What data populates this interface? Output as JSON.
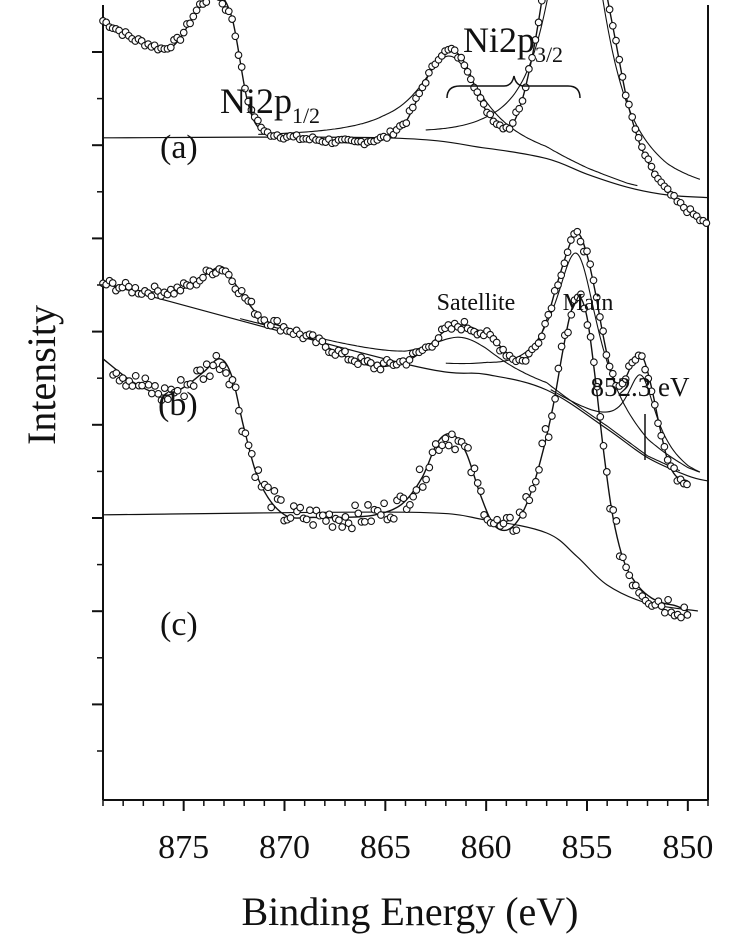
{
  "chart_data": {
    "type": "line",
    "xlabel": "Binding Energy (eV)",
    "ylabel": "Intensity",
    "x_reversed": true,
    "xlim": [
      879,
      849
    ],
    "x_ticks": [
      875,
      870,
      865,
      860,
      855,
      850
    ],
    "x_tick_labels": [
      "875",
      "870",
      "865",
      "860",
      "855",
      "850"
    ],
    "y_ticklabels_shown": false,
    "grid": false,
    "legend": "none",
    "peak_labels": {
      "ni2p12": {
        "base": "Ni2p",
        "sub": "1/2",
        "x": 873.3
      },
      "ni2p32": {
        "base": "Ni2p",
        "sub": "3/2",
        "x": 859.0
      }
    },
    "annotations": {
      "satellite": "Satellite",
      "main": "Main",
      "shoulder": "852.3 eV"
    },
    "series": [
      {
        "name": "(a)",
        "offset": 2.05,
        "markers": "open-circle",
        "data_x": [
          879,
          877.5,
          876,
          875.2,
          874.2,
          873.4,
          872.6,
          871.8,
          871,
          869.5,
          868,
          866.5,
          865,
          864,
          863,
          862.3,
          861.7,
          861,
          860.2,
          859.4,
          858.8,
          858.2,
          857.6,
          857,
          856.4,
          855.8,
          855.4,
          855,
          854.6,
          854.2,
          853.6,
          853,
          852.4,
          851.8,
          851.2,
          850.5,
          849.8,
          849
        ],
        "data_y": [
          0.87,
          0.8,
          0.76,
          0.8,
          0.93,
          0.98,
          0.88,
          0.55,
          0.44,
          0.42,
          0.41,
          0.4,
          0.42,
          0.48,
          0.64,
          0.74,
          0.76,
          0.7,
          0.55,
          0.47,
          0.46,
          0.57,
          0.78,
          1.06,
          1.3,
          1.48,
          1.53,
          1.45,
          1.28,
          1.05,
          0.8,
          0.56,
          0.4,
          0.3,
          0.23,
          0.17,
          0.13,
          0.08
        ],
        "fit_total": "smooth curve through data",
        "background_x": [
          879,
          865,
          860,
          857,
          855,
          853,
          851,
          849
        ],
        "background_y": [
          0.42,
          0.42,
          0.38,
          0.34,
          0.28,
          0.23,
          0.2,
          0.19
        ]
      },
      {
        "name": "(b)",
        "offset": 1.03,
        "markers": "open-circle",
        "data_x": [
          879,
          877,
          875.5,
          874.5,
          873.6,
          873,
          872.2,
          871.2,
          870,
          868.5,
          867,
          865.5,
          864,
          863,
          862,
          861.2,
          860.4,
          859.6,
          858.8,
          858.2,
          857.6,
          857,
          856.4,
          855.8,
          855.4,
          855,
          854.6,
          854.2,
          853.8,
          853.4,
          853,
          852.6,
          852.2,
          851.8,
          851.4,
          851,
          850.6,
          850
        ],
        "data_y": [
          0.88,
          0.85,
          0.85,
          0.88,
          0.93,
          0.94,
          0.85,
          0.75,
          0.71,
          0.66,
          0.6,
          0.56,
          0.58,
          0.63,
          0.7,
          0.72,
          0.7,
          0.66,
          0.6,
          0.58,
          0.63,
          0.74,
          0.9,
          1.04,
          1.07,
          0.99,
          0.85,
          0.68,
          0.54,
          0.48,
          0.53,
          0.6,
          0.59,
          0.48,
          0.33,
          0.2,
          0.14,
          0.12
        ],
        "background_x": [
          879,
          864,
          860,
          857,
          854,
          852,
          850,
          849
        ],
        "background_y": [
          0.88,
          0.57,
          0.53,
          0.47,
          0.32,
          0.21,
          0.14,
          0.12
        ]
      },
      {
        "name": "(c)",
        "offset": 0,
        "markers": "open-circle",
        "data_x": [
          879,
          877.5,
          876,
          875,
          874,
          873.2,
          872.6,
          872,
          871.2,
          870,
          868.5,
          867,
          865.5,
          864.2,
          863.2,
          862.4,
          861.7,
          861,
          860.3,
          859.7,
          859.1,
          858.5,
          857.9,
          857.3,
          856.7,
          856.2,
          855.8,
          855.4,
          855,
          854.6,
          854.2,
          853.8,
          853.4,
          853,
          852.4,
          851.8,
          851.2,
          850.6,
          850
        ],
        "data_y": [
          1.62,
          1.53,
          1.48,
          1.51,
          1.57,
          1.62,
          1.55,
          1.35,
          1.14,
          1.02,
          1.01,
          1.01,
          1.02,
          1.06,
          1.16,
          1.3,
          1.33,
          1.26,
          1.1,
          0.99,
          0.96,
          0.99,
          1.08,
          1.23,
          1.43,
          1.65,
          1.8,
          1.86,
          1.78,
          1.55,
          1.28,
          1.05,
          0.9,
          0.81,
          0.74,
          0.7,
          0.68,
          0.67,
          0.65
        ],
        "background_x": [
          879,
          864,
          860,
          857,
          855.5,
          854,
          852,
          849.5
        ],
        "background_y": [
          1.02,
          1.03,
          1.0,
          0.95,
          0.86,
          0.75,
          0.68,
          0.65
        ]
      }
    ],
    "components_b": {
      "satellite": {
        "center": 861.2,
        "amp": 0.13,
        "width": 2.2
      },
      "main": {
        "center": 855.5,
        "amp": 0.6,
        "width": 1.3
      },
      "shoulder": {
        "center": 852.3,
        "amp": 0.3,
        "width": 0.9
      }
    },
    "components_a": {
      "satellite": {
        "center": 861.8,
        "amp": 0.34,
        "width": 1.9
      },
      "main": {
        "center": 855.5,
        "amp": 1.2,
        "width": 1.5
      }
    }
  }
}
